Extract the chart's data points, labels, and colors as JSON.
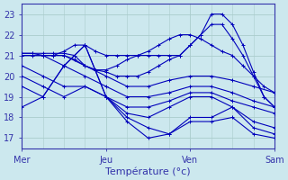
{
  "xlabel": "Température (°c)",
  "xlim": [
    0,
    72
  ],
  "ylim": [
    16.5,
    23.5
  ],
  "yticks": [
    17,
    18,
    19,
    20,
    21,
    22,
    23
  ],
  "xtick_positions": [
    0,
    24,
    48,
    72
  ],
  "xtick_labels": [
    "Mer",
    "Jeu",
    "Ven",
    "Sam"
  ],
  "bg_color": "#cce8ee",
  "grid_color": "#aacccc",
  "line_color": "#0000bb",
  "markersize": 2.0,
  "linewidth": 0.8,
  "series": [
    [
      0,
      21.1,
      3,
      21.1,
      6,
      21.1,
      9,
      21.1,
      12,
      21.1,
      15,
      21.0,
      18,
      20.5,
      21,
      20.3,
      24,
      20.3,
      27,
      20.5,
      30,
      20.8,
      33,
      21.0,
      36,
      21.2,
      39,
      21.5,
      42,
      21.8,
      45,
      22.0,
      48,
      22.0,
      51,
      21.8,
      54,
      21.5,
      57,
      21.2,
      60,
      21.0,
      63,
      20.5,
      66,
      20.0,
      69,
      19.5,
      72,
      19.2
    ],
    [
      0,
      21.1,
      3,
      21.1,
      6,
      21.0,
      9,
      21.0,
      12,
      21.0,
      15,
      20.8,
      18,
      20.5,
      21,
      20.3,
      24,
      20.2,
      27,
      20.0,
      30,
      20.0,
      33,
      20.0,
      36,
      20.2,
      39,
      20.5,
      42,
      20.8,
      45,
      21.0,
      48,
      21.5,
      51,
      22.0,
      54,
      23.0,
      57,
      23.0,
      60,
      22.5,
      63,
      21.5,
      66,
      20.2,
      69,
      19.0,
      72,
      18.5
    ],
    [
      0,
      21.0,
      3,
      21.0,
      6,
      21.0,
      9,
      21.0,
      12,
      21.2,
      15,
      21.5,
      18,
      21.5,
      21,
      21.2,
      24,
      21.0,
      27,
      21.0,
      30,
      21.0,
      33,
      21.0,
      36,
      21.0,
      39,
      21.0,
      42,
      21.0,
      45,
      21.0,
      48,
      21.5,
      51,
      22.0,
      54,
      22.5,
      57,
      22.5,
      60,
      21.8,
      63,
      21.0,
      66,
      20.0,
      69,
      19.0,
      72,
      18.5
    ],
    [
      0,
      21.0,
      6,
      21.0,
      12,
      21.0,
      18,
      20.5,
      24,
      20.0,
      30,
      19.5,
      36,
      19.5,
      42,
      19.8,
      48,
      20.0,
      54,
      20.0,
      60,
      19.8,
      66,
      19.5,
      72,
      19.2
    ],
    [
      0,
      21.0,
      6,
      21.0,
      12,
      20.5,
      18,
      20.0,
      24,
      19.5,
      30,
      19.0,
      36,
      19.0,
      42,
      19.2,
      48,
      19.5,
      54,
      19.5,
      60,
      19.2,
      66,
      18.8,
      72,
      18.5
    ],
    [
      0,
      20.5,
      6,
      20.0,
      12,
      19.5,
      18,
      19.5,
      24,
      19.0,
      30,
      18.5,
      36,
      18.5,
      42,
      18.8,
      48,
      19.2,
      54,
      19.2,
      60,
      18.8,
      66,
      18.5,
      72,
      18.2
    ],
    [
      0,
      20.0,
      6,
      19.5,
      12,
      19.0,
      18,
      19.5,
      24,
      19.0,
      30,
      18.2,
      36,
      18.0,
      42,
      18.5,
      48,
      19.0,
      54,
      19.0,
      60,
      18.5,
      66,
      17.8,
      72,
      17.5
    ],
    [
      0,
      19.5,
      6,
      19.0,
      12,
      20.5,
      18,
      21.5,
      24,
      19.0,
      30,
      18.0,
      36,
      17.5,
      42,
      17.2,
      48,
      18.0,
      54,
      18.0,
      60,
      18.5,
      66,
      17.5,
      72,
      17.2
    ],
    [
      0,
      18.5,
      6,
      19.0,
      12,
      20.5,
      18,
      21.5,
      24,
      19.0,
      30,
      17.8,
      36,
      17.0,
      42,
      17.2,
      48,
      17.8,
      54,
      17.8,
      60,
      18.0,
      66,
      17.2,
      72,
      17.0
    ]
  ]
}
